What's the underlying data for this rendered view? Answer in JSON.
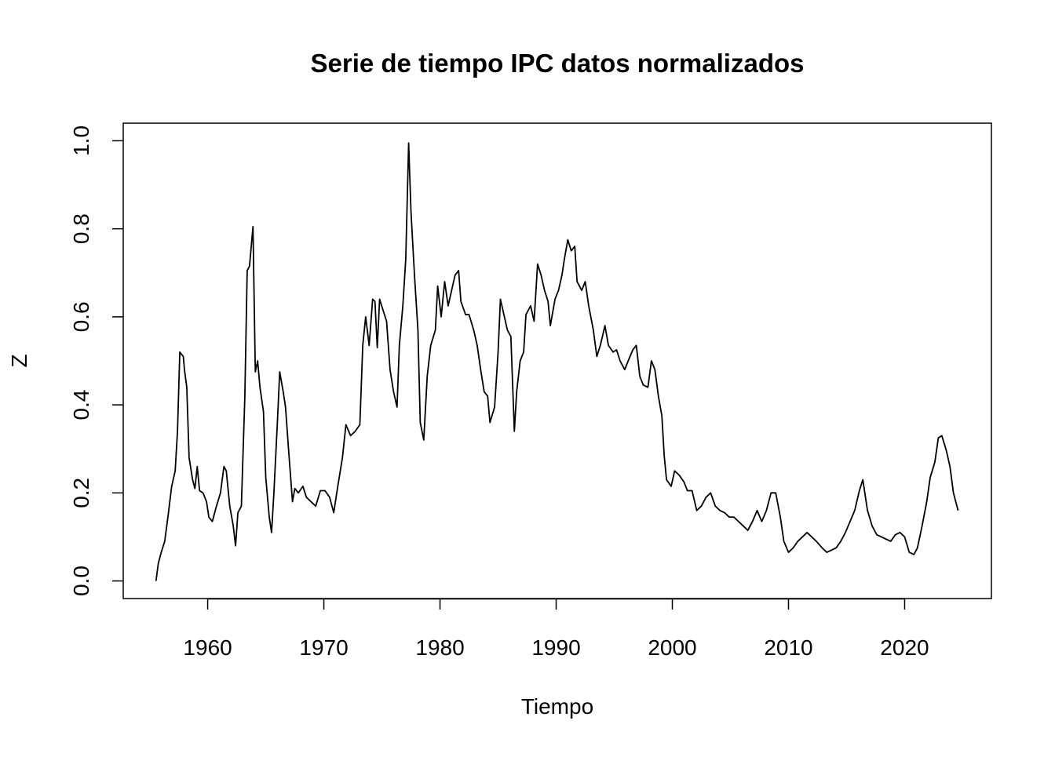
{
  "chart_data": {
    "type": "line",
    "title": "Serie de tiempo IPC datos normalizados",
    "xlabel": "Tiempo",
    "ylabel": "Z",
    "color": "#000000",
    "x": [
      1955.55,
      1955.75,
      1956.0,
      1956.3,
      1956.6,
      1956.9,
      1957.2,
      1957.4,
      1957.6,
      1957.9,
      1958.0,
      1958.2,
      1958.4,
      1958.7,
      1958.9,
      1959.1,
      1959.3,
      1959.6,
      1959.9,
      1960.1,
      1960.4,
      1960.7,
      1961.1,
      1961.4,
      1961.6,
      1961.9,
      1962.2,
      1962.4,
      1962.6,
      1962.9,
      1963.2,
      1963.4,
      1963.6,
      1963.9,
      1964.1,
      1964.3,
      1964.5,
      1964.8,
      1965.0,
      1965.3,
      1965.5,
      1965.7,
      1966.0,
      1966.2,
      1966.5,
      1966.7,
      1967.0,
      1967.3,
      1967.5,
      1967.8,
      1968.2,
      1968.5,
      1968.9,
      1969.3,
      1969.7,
      1970.1,
      1970.5,
      1970.85,
      1971.2,
      1971.6,
      1971.9,
      1972.3,
      1972.7,
      1973.1,
      1973.35,
      1973.6,
      1973.9,
      1974.2,
      1974.4,
      1974.6,
      1974.8,
      1975.1,
      1975.4,
      1975.7,
      1976.0,
      1976.3,
      1976.5,
      1976.8,
      1977.05,
      1977.3,
      1977.5,
      1977.8,
      1978.1,
      1978.3,
      1978.6,
      1978.9,
      1979.2,
      1979.6,
      1979.8,
      1980.1,
      1980.4,
      1980.7,
      1981.0,
      1981.3,
      1981.6,
      1981.8,
      1982.2,
      1982.5,
      1982.9,
      1983.2,
      1983.5,
      1983.8,
      1984.1,
      1984.3,
      1984.7,
      1985.0,
      1985.2,
      1985.5,
      1985.8,
      1986.1,
      1986.4,
      1986.6,
      1986.9,
      1987.2,
      1987.4,
      1987.8,
      1988.1,
      1988.4,
      1988.7,
      1989.0,
      1989.3,
      1989.5,
      1989.9,
      1990.2,
      1990.5,
      1990.7,
      1991.0,
      1991.3,
      1991.6,
      1991.8,
      1992.2,
      1992.5,
      1992.8,
      1993.2,
      1993.5,
      1993.8,
      1994.2,
      1994.5,
      1994.9,
      1995.2,
      1995.5,
      1995.9,
      1996.2,
      1996.6,
      1996.9,
      1997.2,
      1997.5,
      1997.9,
      1998.2,
      1998.5,
      1998.8,
      1999.1,
      1999.3,
      1999.5,
      1999.9,
      2000.2,
      2000.6,
      2001.0,
      2001.3,
      2001.7,
      2002.1,
      2002.5,
      2002.9,
      2003.3,
      2003.7,
      2004.1,
      2004.5,
      2004.9,
      2005.3,
      2005.7,
      2006.1,
      2006.5,
      2006.9,
      2007.3,
      2007.7,
      2008.1,
      2008.5,
      2008.9,
      2009.3,
      2009.6,
      2010.0,
      2010.4,
      2010.8,
      2011.2,
      2011.6,
      2012.0,
      2012.4,
      2012.9,
      2013.3,
      2013.7,
      2014.1,
      2014.5,
      2014.9,
      2015.3,
      2015.7,
      2016.1,
      2016.4,
      2016.8,
      2017.2,
      2017.6,
      2018.0,
      2018.4,
      2018.8,
      2019.2,
      2019.6,
      2020.0,
      2020.4,
      2020.8,
      2021.1,
      2021.5,
      2021.9,
      2022.2,
      2022.6,
      2022.9,
      2023.2,
      2023.6,
      2023.9,
      2024.2,
      2024.4,
      2024.6
    ],
    "values": [
      0.0,
      0.04,
      0.065,
      0.09,
      0.15,
      0.215,
      0.25,
      0.34,
      0.52,
      0.51,
      0.48,
      0.44,
      0.28,
      0.23,
      0.21,
      0.26,
      0.205,
      0.2,
      0.18,
      0.145,
      0.135,
      0.165,
      0.2,
      0.26,
      0.25,
      0.17,
      0.125,
      0.08,
      0.155,
      0.17,
      0.42,
      0.705,
      0.715,
      0.805,
      0.475,
      0.5,
      0.44,
      0.385,
      0.235,
      0.145,
      0.11,
      0.2,
      0.36,
      0.475,
      0.43,
      0.395,
      0.285,
      0.18,
      0.21,
      0.2,
      0.215,
      0.19,
      0.18,
      0.17,
      0.205,
      0.205,
      0.19,
      0.155,
      0.215,
      0.28,
      0.355,
      0.33,
      0.34,
      0.355,
      0.535,
      0.6,
      0.535,
      0.64,
      0.635,
      0.53,
      0.64,
      0.615,
      0.59,
      0.48,
      0.43,
      0.395,
      0.535,
      0.625,
      0.73,
      0.995,
      0.84,
      0.695,
      0.57,
      0.36,
      0.32,
      0.465,
      0.535,
      0.57,
      0.67,
      0.6,
      0.68,
      0.625,
      0.66,
      0.695,
      0.705,
      0.635,
      0.605,
      0.605,
      0.57,
      0.535,
      0.48,
      0.43,
      0.42,
      0.36,
      0.395,
      0.52,
      0.64,
      0.605,
      0.57,
      0.555,
      0.34,
      0.43,
      0.5,
      0.52,
      0.605,
      0.625,
      0.59,
      0.72,
      0.695,
      0.66,
      0.635,
      0.58,
      0.64,
      0.66,
      0.695,
      0.73,
      0.775,
      0.75,
      0.76,
      0.68,
      0.66,
      0.68,
      0.625,
      0.57,
      0.51,
      0.535,
      0.58,
      0.535,
      0.52,
      0.525,
      0.5,
      0.48,
      0.5,
      0.525,
      0.535,
      0.465,
      0.445,
      0.44,
      0.5,
      0.48,
      0.42,
      0.375,
      0.285,
      0.23,
      0.215,
      0.25,
      0.24,
      0.225,
      0.205,
      0.205,
      0.16,
      0.17,
      0.19,
      0.2,
      0.17,
      0.16,
      0.155,
      0.145,
      0.145,
      0.135,
      0.125,
      0.115,
      0.135,
      0.16,
      0.135,
      0.16,
      0.2,
      0.2,
      0.145,
      0.09,
      0.065,
      0.075,
      0.09,
      0.1,
      0.11,
      0.1,
      0.09,
      0.075,
      0.065,
      0.07,
      0.075,
      0.09,
      0.11,
      0.135,
      0.16,
      0.205,
      0.23,
      0.16,
      0.125,
      0.105,
      0.1,
      0.095,
      0.09,
      0.105,
      0.11,
      0.1,
      0.065,
      0.06,
      0.075,
      0.125,
      0.18,
      0.235,
      0.27,
      0.325,
      0.33,
      0.295,
      0.26,
      0.2,
      0.18,
      0.16
    ],
    "xlim": [
      1952.73,
      2027.47
    ],
    "ylim": [
      -0.04,
      1.04
    ],
    "xticks": [
      1960,
      1970,
      1980,
      1990,
      2000,
      2010,
      2020
    ],
    "yticks": [
      {
        "value": 0,
        "label": "0.0"
      },
      {
        "value": 0.2,
        "label": "0.2"
      },
      {
        "value": 0.4,
        "label": "0.4"
      },
      {
        "value": 0.6,
        "label": "0.6"
      },
      {
        "value": 0.8,
        "label": "0.8"
      },
      {
        "value": 1,
        "label": "1.0"
      }
    ]
  }
}
